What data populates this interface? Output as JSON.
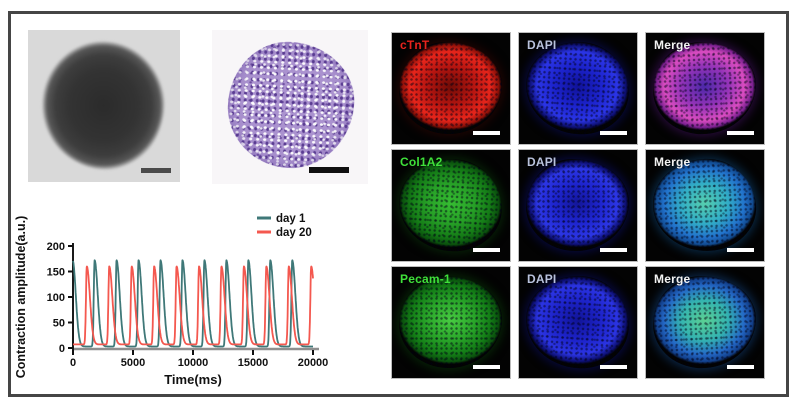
{
  "figure": {
    "border_color": "#454545",
    "background": "#ffffff"
  },
  "brightfield": {
    "background": "#d9d9d9",
    "spheroid_core": "#2e2e2e",
    "spheroid_edge": "#575757",
    "scalebar_color": "#4a4a4a"
  },
  "histology": {
    "background": "#f8f6f8",
    "stain_base": "#aa92cf",
    "stain_dark": "#52348c",
    "scalebar_color": "#101010"
  },
  "chart_data": {
    "type": "line",
    "title": "",
    "xlabel": "Time(ms)",
    "ylabel": "Contraction amplitude(a.u.)",
    "xlim": [
      0,
      20000
    ],
    "ylim": [
      0,
      200
    ],
    "x_ticks": [
      0,
      5000,
      10000,
      15000,
      20000
    ],
    "y_ticks": [
      0,
      50,
      100,
      150,
      200
    ],
    "grid": false,
    "legend_position": "top-right",
    "axis_color": "#1a1a1a",
    "x_axis_line_color": "#8f8f8f",
    "series": [
      {
        "name": "day 1",
        "color": "#3F7878",
        "baseline": 3,
        "peak_amplitude": 172,
        "rise_ms": 70,
        "decay_ms": 260,
        "peak_times_ms": [
          -30,
          1800,
          3630,
          5460,
          7290,
          9120,
          10950,
          12780,
          14610,
          16440,
          18270
        ]
      },
      {
        "name": "day 20",
        "color": "#F4584F",
        "baseline": 7,
        "peak_amplitude": 160,
        "rise_ms": 70,
        "decay_ms": 260,
        "peak_times_ms": [
          1150,
          3020,
          4890,
          6760,
          8630,
          10500,
          12370,
          14240,
          16110,
          17980,
          19850
        ]
      }
    ]
  },
  "fluorescence": {
    "scalebar_color": "#ffffff",
    "rows": [
      {
        "panels": [
          {
            "id": "ctnt",
            "label": "cTnT",
            "label_color": "#e8231d",
            "colors": {
              "c0": "#700c06",
              "c1": "#b51510",
              "c2": "#e7251b",
              "rim": "#8c1008",
              "glow": "#38060288"
            }
          },
          {
            "id": "dapi-1",
            "label": "DAPI",
            "label_color": "#b9c2dc",
            "colors": {
              "c0": "#101299",
              "c1": "#1c23cc",
              "c2": "#2b35e6",
              "rim": "#0c0e6e",
              "glow": "#090d6e88"
            }
          },
          {
            "id": "merge-1",
            "label": "Merge",
            "label_color": "#f2f2f2",
            "colors": {
              "c0": "#4b28a8",
              "c1": "#9233b8",
              "c2": "#d94cc0",
              "rim": "#7a2090",
              "glow": "#4b107088"
            }
          }
        ]
      },
      {
        "panels": [
          {
            "id": "col1a2",
            "label": "Col1A2",
            "label_color": "#3fe03a",
            "colors": {
              "c0": "#36bd32",
              "c1": "#27a027",
              "c2": "#147a16",
              "rim": "#0a4f0d",
              "glow": "#0a3c0a88"
            }
          },
          {
            "id": "dapi-2",
            "label": "DAPI",
            "label_color": "#b9c2dc",
            "colors": {
              "c0": "#131699",
              "c1": "#1e25cf",
              "c2": "#2c36e4",
              "rim": "#0c0e6e",
              "glow": "#0a0e7488"
            }
          },
          {
            "id": "merge-2",
            "label": "Merge",
            "label_color": "#f2f2f2",
            "colors": {
              "c0": "#56cfae",
              "c1": "#32aec6",
              "c2": "#2272cc",
              "rim": "#114a90",
              "glow": "#0e4c8688"
            }
          }
        ]
      },
      {
        "panels": [
          {
            "id": "pecam1",
            "label": "Pecam-1",
            "label_color": "#3fe03a",
            "colors": {
              "c0": "#48cc42",
              "c1": "#2aa62a",
              "c2": "#137c16",
              "rim": "#0a4f0d",
              "glow": "#0a420a88"
            }
          },
          {
            "id": "dapi-3",
            "label": "DAPI",
            "label_color": "#b9c2dc",
            "colors": {
              "c0": "#111497",
              "c1": "#1d23c9",
              "c2": "#2b34e2",
              "rim": "#0c0e6e",
              "glow": "#0a0e7488"
            }
          },
          {
            "id": "merge-3",
            "label": "Merge",
            "label_color": "#f2f2f2",
            "colors": {
              "c0": "#5cd193",
              "c1": "#34b4b0",
              "c2": "#2468c6",
              "rim": "#123f8a",
              "glow": "#10488a88"
            }
          }
        ]
      }
    ]
  }
}
